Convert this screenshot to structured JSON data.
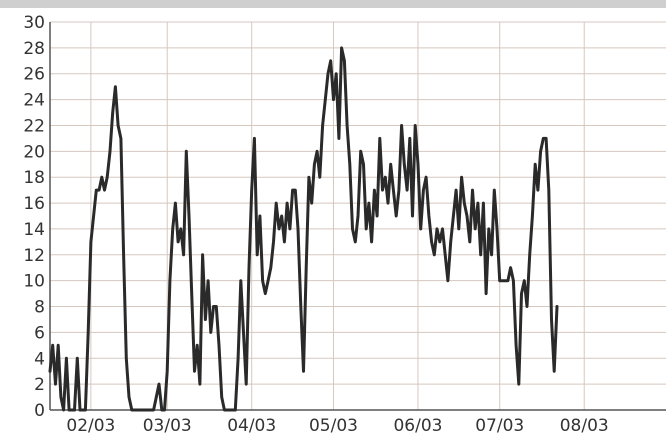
{
  "colors": {
    "grid": "#d6c7bf",
    "line": "#2a2a2a",
    "text": "#333333",
    "background": "#ffffff"
  },
  "chart_data": {
    "type": "line",
    "title": "",
    "xlabel": "",
    "ylabel": "",
    "grid": true,
    "ylim": [
      0,
      30
    ],
    "xlim": [
      "2003-01-17",
      "2003-08-31"
    ],
    "yticks": [
      0,
      2,
      4,
      6,
      8,
      10,
      12,
      14,
      16,
      18,
      20,
      22,
      24,
      26,
      28,
      30
    ],
    "xticks": [
      {
        "date": "2003-02-01",
        "label": "02/03"
      },
      {
        "date": "2003-03-01",
        "label": "03/03"
      },
      {
        "date": "2003-04-01",
        "label": "04/03"
      },
      {
        "date": "2003-05-01",
        "label": "05/03"
      },
      {
        "date": "2003-06-01",
        "label": "06/03"
      },
      {
        "date": "2003-07-01",
        "label": "07/03"
      },
      {
        "date": "2003-08-01",
        "label": "08/03"
      }
    ],
    "series": [
      {
        "points": [
          [
            "2003-01-17",
            3
          ],
          [
            "2003-01-18",
            5
          ],
          [
            "2003-01-19",
            2
          ],
          [
            "2003-01-20",
            5
          ],
          [
            "2003-01-21",
            1
          ],
          [
            "2003-01-22",
            0
          ],
          [
            "2003-01-23",
            4
          ],
          [
            "2003-01-24",
            0
          ],
          [
            "2003-01-26",
            0
          ],
          [
            "2003-01-27",
            4
          ],
          [
            "2003-01-28",
            0
          ],
          [
            "2003-01-30",
            0
          ],
          [
            "2003-01-31",
            6
          ],
          [
            "2003-02-01",
            13
          ],
          [
            "2003-02-02",
            15
          ],
          [
            "2003-02-03",
            17
          ],
          [
            "2003-02-04",
            17
          ],
          [
            "2003-02-05",
            18
          ],
          [
            "2003-02-06",
            17
          ],
          [
            "2003-02-07",
            18
          ],
          [
            "2003-02-08",
            20
          ],
          [
            "2003-02-09",
            23
          ],
          [
            "2003-02-10",
            25
          ],
          [
            "2003-02-11",
            22
          ],
          [
            "2003-02-12",
            21
          ],
          [
            "2003-02-13",
            12
          ],
          [
            "2003-02-14",
            4
          ],
          [
            "2003-02-15",
            1
          ],
          [
            "2003-02-16",
            0
          ],
          [
            "2003-02-18",
            0
          ],
          [
            "2003-02-20",
            0
          ],
          [
            "2003-02-22",
            0
          ],
          [
            "2003-02-24",
            0
          ],
          [
            "2003-02-25",
            1
          ],
          [
            "2003-02-26",
            2
          ],
          [
            "2003-02-27",
            0
          ],
          [
            "2003-02-28",
            0
          ],
          [
            "2003-03-01",
            3
          ],
          [
            "2003-03-02",
            10
          ],
          [
            "2003-03-03",
            14
          ],
          [
            "2003-03-04",
            16
          ],
          [
            "2003-03-05",
            13
          ],
          [
            "2003-03-06",
            14
          ],
          [
            "2003-03-07",
            12
          ],
          [
            "2003-03-08",
            20
          ],
          [
            "2003-03-09",
            15
          ],
          [
            "2003-03-10",
            9
          ],
          [
            "2003-03-11",
            3
          ],
          [
            "2003-03-12",
            5
          ],
          [
            "2003-03-13",
            2
          ],
          [
            "2003-03-14",
            12
          ],
          [
            "2003-03-15",
            7
          ],
          [
            "2003-03-16",
            10
          ],
          [
            "2003-03-17",
            6
          ],
          [
            "2003-03-18",
            8
          ],
          [
            "2003-03-19",
            8
          ],
          [
            "2003-03-20",
            5
          ],
          [
            "2003-03-21",
            1
          ],
          [
            "2003-03-22",
            0
          ],
          [
            "2003-03-24",
            0
          ],
          [
            "2003-03-26",
            0
          ],
          [
            "2003-03-27",
            4
          ],
          [
            "2003-03-28",
            10
          ],
          [
            "2003-03-29",
            6
          ],
          [
            "2003-03-30",
            2
          ],
          [
            "2003-03-31",
            11
          ],
          [
            "2003-04-01",
            17
          ],
          [
            "2003-04-02",
            21
          ],
          [
            "2003-04-03",
            12
          ],
          [
            "2003-04-04",
            15
          ],
          [
            "2003-04-05",
            10
          ],
          [
            "2003-04-06",
            9
          ],
          [
            "2003-04-07",
            10
          ],
          [
            "2003-04-08",
            11
          ],
          [
            "2003-04-09",
            13
          ],
          [
            "2003-04-10",
            16
          ],
          [
            "2003-04-11",
            14
          ],
          [
            "2003-04-12",
            15
          ],
          [
            "2003-04-13",
            13
          ],
          [
            "2003-04-14",
            16
          ],
          [
            "2003-04-15",
            14
          ],
          [
            "2003-04-16",
            17
          ],
          [
            "2003-04-17",
            17
          ],
          [
            "2003-04-18",
            14
          ],
          [
            "2003-04-19",
            8
          ],
          [
            "2003-04-20",
            3
          ],
          [
            "2003-04-21",
            11
          ],
          [
            "2003-04-22",
            18
          ],
          [
            "2003-04-23",
            16
          ],
          [
            "2003-04-24",
            19
          ],
          [
            "2003-04-25",
            20
          ],
          [
            "2003-04-26",
            18
          ],
          [
            "2003-04-27",
            22
          ],
          [
            "2003-04-28",
            24
          ],
          [
            "2003-04-29",
            26
          ],
          [
            "2003-04-30",
            27
          ],
          [
            "2003-05-01",
            24
          ],
          [
            "2003-05-02",
            26
          ],
          [
            "2003-05-03",
            21
          ],
          [
            "2003-05-04",
            28
          ],
          [
            "2003-05-05",
            27
          ],
          [
            "2003-05-06",
            22
          ],
          [
            "2003-05-07",
            19
          ],
          [
            "2003-05-08",
            14
          ],
          [
            "2003-05-09",
            13
          ],
          [
            "2003-05-10",
            15
          ],
          [
            "2003-05-11",
            20
          ],
          [
            "2003-05-12",
            19
          ],
          [
            "2003-05-13",
            14
          ],
          [
            "2003-05-14",
            16
          ],
          [
            "2003-05-15",
            13
          ],
          [
            "2003-05-16",
            17
          ],
          [
            "2003-05-17",
            15
          ],
          [
            "2003-05-18",
            21
          ],
          [
            "2003-05-19",
            17
          ],
          [
            "2003-05-20",
            18
          ],
          [
            "2003-05-21",
            16
          ],
          [
            "2003-05-22",
            19
          ],
          [
            "2003-05-23",
            17
          ],
          [
            "2003-05-24",
            15
          ],
          [
            "2003-05-25",
            17
          ],
          [
            "2003-05-26",
            22
          ],
          [
            "2003-05-27",
            19
          ],
          [
            "2003-05-28",
            17
          ],
          [
            "2003-05-29",
            21
          ],
          [
            "2003-05-30",
            15
          ],
          [
            "2003-05-31",
            22
          ],
          [
            "2003-06-01",
            19
          ],
          [
            "2003-06-02",
            14
          ],
          [
            "2003-06-03",
            17
          ],
          [
            "2003-06-04",
            18
          ],
          [
            "2003-06-05",
            15
          ],
          [
            "2003-06-06",
            13
          ],
          [
            "2003-06-07",
            12
          ],
          [
            "2003-06-08",
            14
          ],
          [
            "2003-06-09",
            13
          ],
          [
            "2003-06-10",
            14
          ],
          [
            "2003-06-11",
            12
          ],
          [
            "2003-06-12",
            10
          ],
          [
            "2003-06-13",
            13
          ],
          [
            "2003-06-14",
            15
          ],
          [
            "2003-06-15",
            17
          ],
          [
            "2003-06-16",
            14
          ],
          [
            "2003-06-17",
            18
          ],
          [
            "2003-06-18",
            16
          ],
          [
            "2003-06-19",
            15
          ],
          [
            "2003-06-20",
            13
          ],
          [
            "2003-06-21",
            17
          ],
          [
            "2003-06-22",
            14
          ],
          [
            "2003-06-23",
            16
          ],
          [
            "2003-06-24",
            12
          ],
          [
            "2003-06-25",
            16
          ],
          [
            "2003-06-26",
            9
          ],
          [
            "2003-06-27",
            14
          ],
          [
            "2003-06-28",
            12
          ],
          [
            "2003-06-29",
            17
          ],
          [
            "2003-06-30",
            14
          ],
          [
            "2003-07-01",
            10
          ],
          [
            "2003-07-03",
            10
          ],
          [
            "2003-07-04",
            10
          ],
          [
            "2003-07-05",
            11
          ],
          [
            "2003-07-06",
            10
          ],
          [
            "2003-07-07",
            5
          ],
          [
            "2003-07-08",
            2
          ],
          [
            "2003-07-09",
            9
          ],
          [
            "2003-07-10",
            10
          ],
          [
            "2003-07-11",
            8
          ],
          [
            "2003-07-12",
            12
          ],
          [
            "2003-07-13",
            15
          ],
          [
            "2003-07-14",
            19
          ],
          [
            "2003-07-15",
            17
          ],
          [
            "2003-07-16",
            20
          ],
          [
            "2003-07-17",
            21
          ],
          [
            "2003-07-18",
            21
          ],
          [
            "2003-07-19",
            17
          ],
          [
            "2003-07-20",
            7
          ],
          [
            "2003-07-21",
            3
          ],
          [
            "2003-07-22",
            8
          ]
        ]
      }
    ]
  }
}
